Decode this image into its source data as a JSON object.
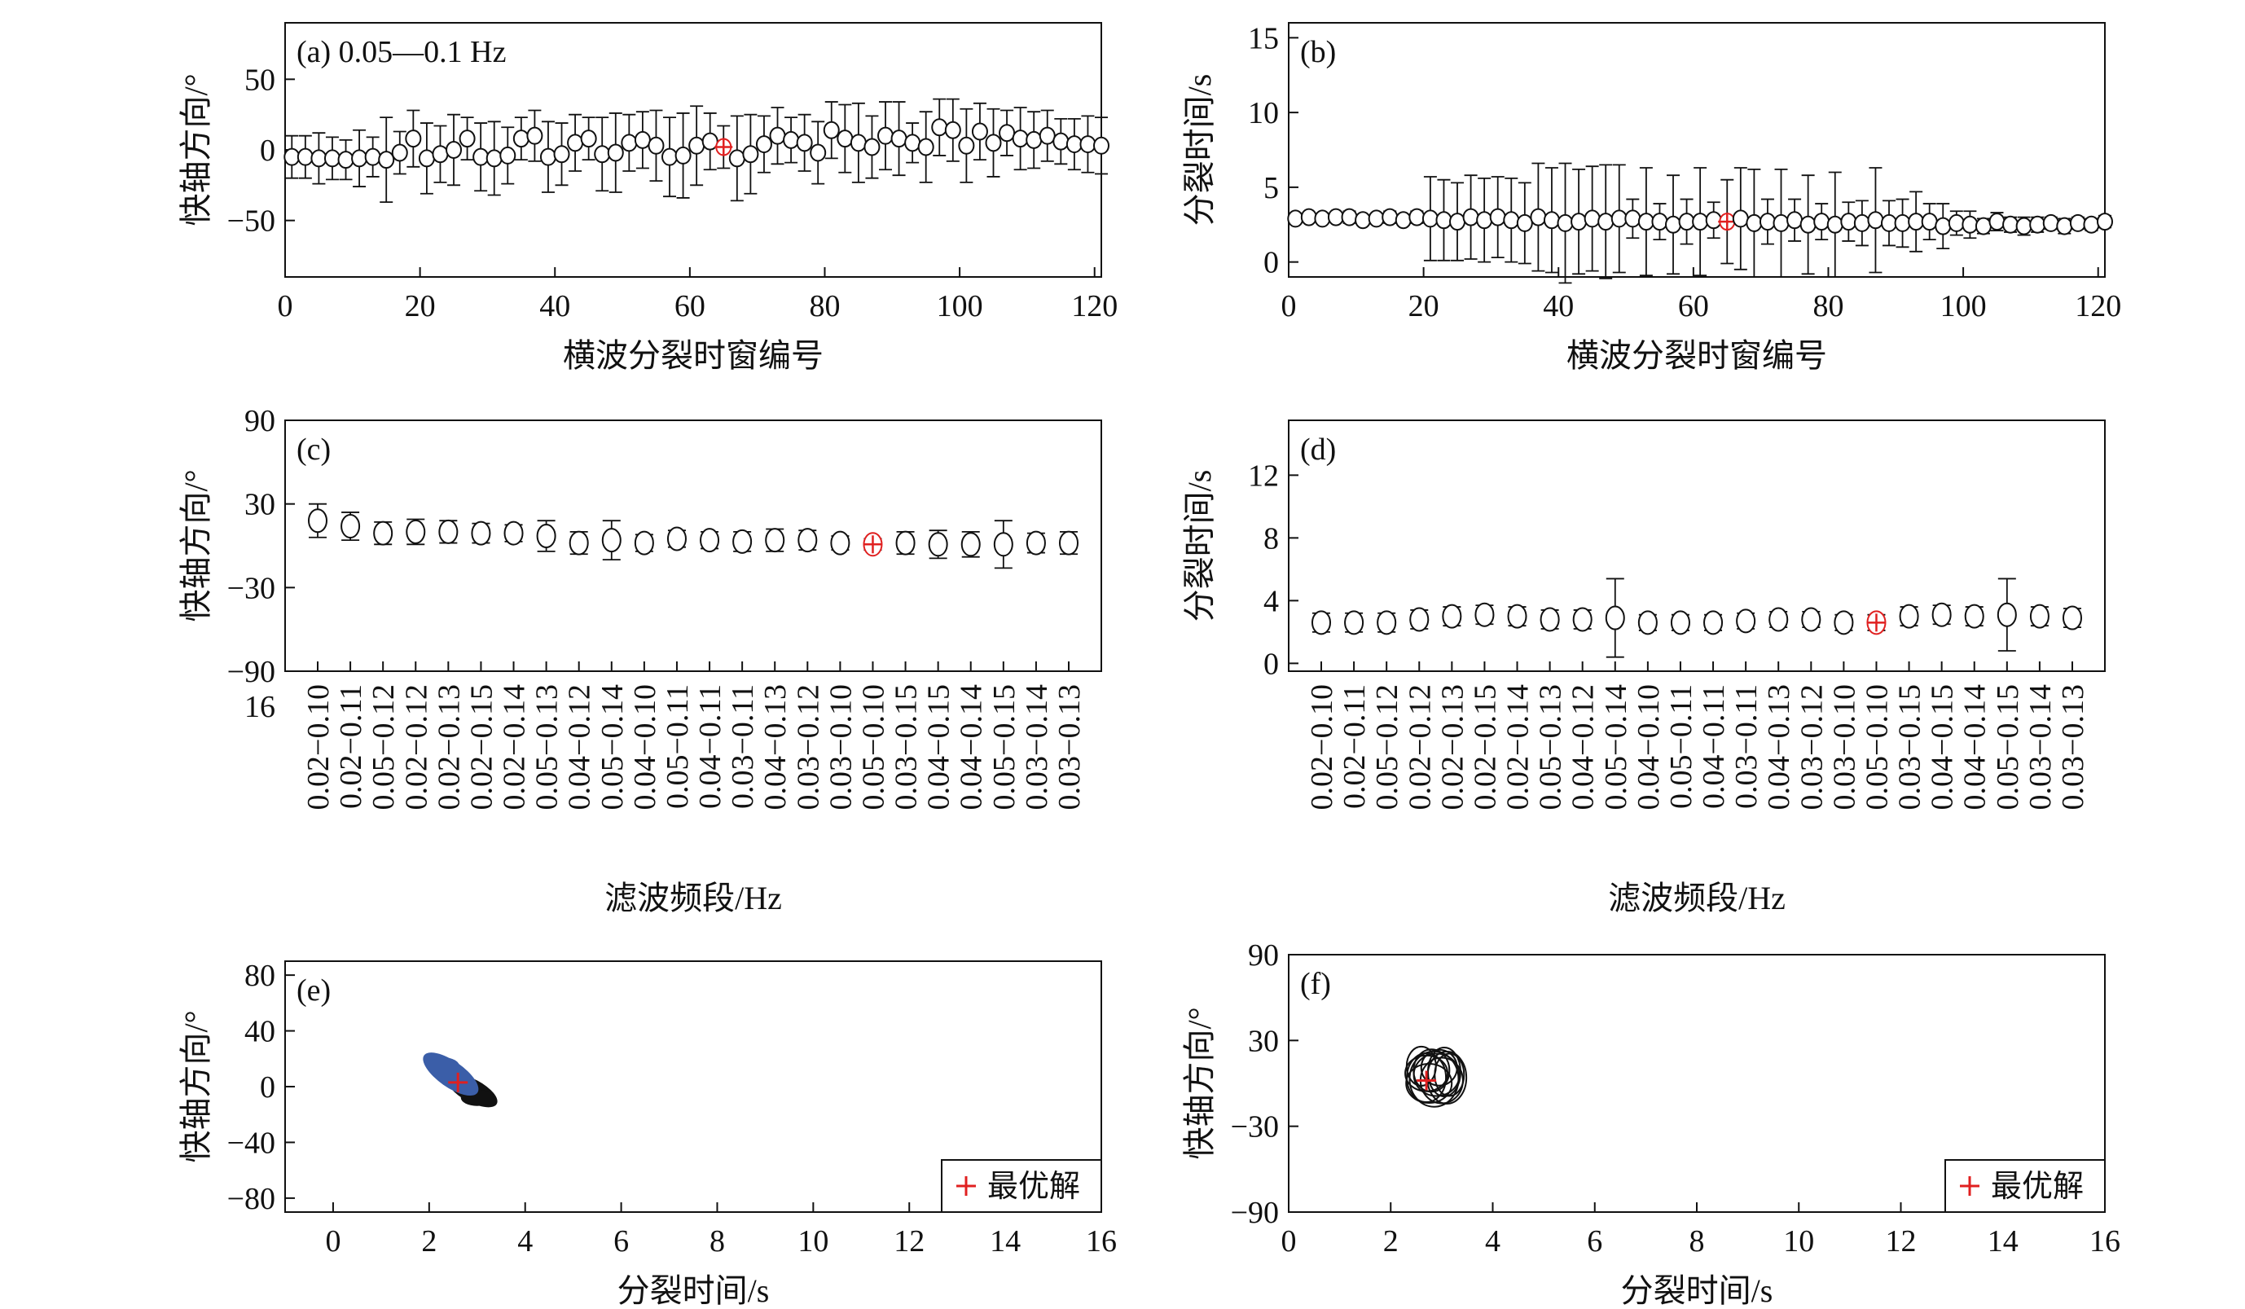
{
  "chart_data": [
    {
      "id": "a",
      "type": "scatter",
      "panel_label": "(a) 0.05—0.1 Hz",
      "xlabel": "横波分裂时窗编号",
      "ylabel": "快轴方向/°",
      "xlim": [
        0,
        121
      ],
      "ylim": [
        -90,
        90
      ],
      "xticks": [
        0,
        20,
        40,
        60,
        80,
        100,
        120
      ],
      "yticks": [
        50,
        0,
        -50
      ],
      "ytick_labels": [
        "50",
        "0",
        "−50"
      ],
      "best_index": 65,
      "series": [
        {
          "x": [
            1,
            3,
            5,
            7,
            9,
            11,
            13,
            15,
            17,
            19,
            21,
            23,
            25,
            27,
            29,
            31,
            33,
            35,
            37,
            39,
            41,
            43,
            45,
            47,
            49,
            51,
            53,
            55,
            57,
            59,
            61,
            63,
            65,
            67,
            69,
            71,
            73,
            75,
            77,
            79,
            81,
            83,
            85,
            87,
            89,
            91,
            93,
            95,
            97,
            99,
            101,
            103,
            105,
            107,
            109,
            111,
            113,
            115,
            117,
            119,
            121
          ],
          "y": [
            -5,
            -5,
            -6,
            -6,
            -7,
            -6,
            -5,
            -7,
            -2,
            8,
            -6,
            -3,
            0,
            8,
            -5,
            -6,
            -4,
            8,
            10,
            -5,
            -3,
            5,
            8,
            -3,
            -2,
            5,
            7,
            3,
            -5,
            -4,
            3,
            6,
            2,
            -6,
            -3,
            4,
            10,
            7,
            5,
            -2,
            14,
            8,
            5,
            2,
            10,
            8,
            5,
            2,
            16,
            14,
            3,
            13,
            5,
            12,
            8,
            7,
            10,
            6,
            4,
            4,
            3
          ],
          "err": [
            15,
            15,
            18,
            15,
            14,
            20,
            14,
            30,
            15,
            20,
            25,
            20,
            25,
            15,
            24,
            26,
            20,
            15,
            18,
            25,
            22,
            20,
            15,
            26,
            28,
            20,
            20,
            25,
            28,
            30,
            28,
            20,
            15,
            30,
            28,
            20,
            20,
            16,
            20,
            22,
            20,
            24,
            28,
            22,
            24,
            26,
            14,
            25,
            20,
            22,
            26,
            20,
            24,
            16,
            22,
            20,
            18,
            16,
            18,
            20,
            20
          ]
        }
      ]
    },
    {
      "id": "b",
      "type": "scatter",
      "panel_label": "(b)",
      "xlabel": "横波分裂时窗编号",
      "ylabel": "分裂时间/s",
      "xlim": [
        0,
        121
      ],
      "ylim": [
        -1,
        16
      ],
      "xticks": [
        0,
        20,
        40,
        60,
        80,
        100,
        120
      ],
      "yticks": [
        0,
        5,
        10,
        15
      ],
      "best_index": 65,
      "series": [
        {
          "x": [
            1,
            3,
            5,
            7,
            9,
            11,
            13,
            15,
            17,
            19,
            21,
            23,
            25,
            27,
            29,
            31,
            33,
            35,
            37,
            39,
            41,
            43,
            45,
            47,
            49,
            51,
            53,
            55,
            57,
            59,
            61,
            63,
            65,
            67,
            69,
            71,
            73,
            75,
            77,
            79,
            81,
            83,
            85,
            87,
            89,
            91,
            93,
            95,
            97,
            99,
            101,
            103,
            105,
            107,
            109,
            111,
            113,
            115,
            117,
            119,
            121
          ],
          "y": [
            2.9,
            3.0,
            2.9,
            3.0,
            3.0,
            2.8,
            2.9,
            3.0,
            2.8,
            3.0,
            2.9,
            2.8,
            2.7,
            3.0,
            2.8,
            3.0,
            2.8,
            2.6,
            3.0,
            2.8,
            2.6,
            2.7,
            2.9,
            2.7,
            2.9,
            2.9,
            2.7,
            2.7,
            2.5,
            2.7,
            2.7,
            2.8,
            2.7,
            2.9,
            2.6,
            2.7,
            2.6,
            2.8,
            2.5,
            2.7,
            2.5,
            2.7,
            2.6,
            2.8,
            2.6,
            2.6,
            2.7,
            2.7,
            2.4,
            2.6,
            2.5,
            2.4,
            2.7,
            2.5,
            2.4,
            2.5,
            2.6,
            2.4,
            2.6,
            2.5,
            2.7
          ],
          "err": [
            0.3,
            0.3,
            0.3,
            0.3,
            0.4,
            0.3,
            0.3,
            0.4,
            0.3,
            0.4,
            2.8,
            2.7,
            2.6,
            2.8,
            2.8,
            2.7,
            2.8,
            2.7,
            3.6,
            3.5,
            4.0,
            3.5,
            3.5,
            3.8,
            3.6,
            1.3,
            3.6,
            1.2,
            3.3,
            1.5,
            3.6,
            1.2,
            2.8,
            3.4,
            3.6,
            1.5,
            3.6,
            1.4,
            3.3,
            1.2,
            3.5,
            1.3,
            1.5,
            3.5,
            1.5,
            1.6,
            2.0,
            1.2,
            1.5,
            0.8,
            0.9,
            0.5,
            0.6,
            0.5,
            0.6,
            0.5,
            0.4,
            0.5,
            0.4,
            0.4,
            0.4
          ]
        }
      ]
    },
    {
      "id": "c",
      "type": "scatter",
      "panel_label": "(c)",
      "xlabel": "滤波频段/Hz",
      "ylabel": "快轴方向/°",
      "ylim": [
        -90,
        90
      ],
      "yticks": [
        90,
        30,
        -30,
        -90
      ],
      "ytick_labels": [
        "90",
        "30",
        "−30",
        "−90"
      ],
      "extra_tick_label": "16",
      "categories": [
        "0.02−0.10",
        "0.02−0.11",
        "0.05−0.12",
        "0.02−0.12",
        "0.02−0.13",
        "0.02−0.15",
        "0.02−0.14",
        "0.05−0.13",
        "0.04−0.12",
        "0.05−0.14",
        "0.04−0.10",
        "0.05−0.11",
        "0.04−0.11",
        "0.03−0.11",
        "0.04−0.13",
        "0.03−0.12",
        "0.03−0.10",
        "0.05−0.10",
        "0.03−0.15",
        "0.04−0.15",
        "0.04−0.14",
        "0.05−0.15",
        "0.03−0.14",
        "0.03−0.13"
      ],
      "best_index": 17,
      "series": [
        {
          "values": [
            18,
            14,
            9,
            10,
            10,
            9,
            9,
            7,
            2,
            4,
            2,
            5,
            4,
            3,
            4,
            4,
            2,
            1,
            2,
            1,
            1,
            1,
            2,
            2
          ],
          "err": [
            12,
            10,
            8,
            9,
            8,
            7,
            6,
            11,
            8,
            14,
            6,
            6,
            6,
            7,
            8,
            7,
            5,
            4,
            8,
            10,
            9,
            17,
            7,
            8
          ]
        }
      ]
    },
    {
      "id": "d",
      "type": "scatter",
      "panel_label": "(d)",
      "xlabel": "滤波频段/Hz",
      "ylabel": "分裂时间/s",
      "ylim": [
        -0.5,
        15.5
      ],
      "yticks": [
        0,
        4,
        8,
        12
      ],
      "categories": [
        "0.02−0.10",
        "0.02−0.11",
        "0.05−0.12",
        "0.02−0.12",
        "0.02−0.13",
        "0.02−0.15",
        "0.02−0.14",
        "0.05−0.13",
        "0.04−0.12",
        "0.05−0.14",
        "0.04−0.10",
        "0.05−0.11",
        "0.04−0.11",
        "0.03−0.11",
        "0.04−0.13",
        "0.03−0.12",
        "0.03−0.10",
        "0.05−0.10",
        "0.03−0.15",
        "0.04−0.15",
        "0.04−0.14",
        "0.05−0.15",
        "0.03−0.14",
        "0.03−0.13"
      ],
      "best_index": 17,
      "series": [
        {
          "values": [
            2.6,
            2.6,
            2.6,
            2.8,
            3.0,
            3.1,
            3.0,
            2.8,
            2.8,
            2.9,
            2.6,
            2.6,
            2.6,
            2.7,
            2.8,
            2.8,
            2.6,
            2.6,
            3.0,
            3.1,
            3.0,
            3.1,
            3.0,
            2.9
          ],
          "err": [
            0.6,
            0.6,
            0.6,
            0.6,
            0.6,
            0.6,
            0.6,
            0.6,
            0.6,
            2.5,
            0.5,
            0.5,
            0.5,
            0.5,
            0.5,
            0.5,
            0.5,
            0.5,
            0.6,
            0.6,
            0.6,
            2.3,
            0.6,
            0.6
          ]
        }
      ]
    },
    {
      "id": "e",
      "type": "scatter",
      "panel_label": "(e)",
      "xlabel": "分裂时间/s",
      "ylabel": "快轴方向/°",
      "xlim": [
        -1,
        16
      ],
      "ylim": [
        -90,
        90
      ],
      "xticks": [
        0,
        2,
        4,
        6,
        8,
        10,
        12,
        14,
        16
      ],
      "yticks": [
        80,
        40,
        0,
        -40,
        -80
      ],
      "ytick_labels": [
        "80",
        "40",
        "0",
        "−40",
        "−80"
      ],
      "legend": "最优解",
      "legend_position": "bottom-right",
      "colors": {
        "blue_cluster": "#3b5ea8",
        "black_cluster": "#111111",
        "best": "#e02020"
      },
      "best": {
        "x": 2.6,
        "y": 3
      }
    },
    {
      "id": "f",
      "type": "scatter",
      "panel_label": "(f)",
      "xlabel": "分裂时间/s",
      "ylabel": "快轴方向/°",
      "xlim": [
        0,
        16
      ],
      "ylim": [
        -90,
        90
      ],
      "xticks": [
        0,
        2,
        4,
        6,
        8,
        10,
        12,
        14,
        16
      ],
      "yticks": [
        90,
        30,
        -30,
        -90
      ],
      "ytick_labels": [
        "90",
        "30",
        "−30",
        "−90"
      ],
      "legend": "最优解",
      "legend_position": "bottom-right",
      "colors": {
        "contour": "#111111",
        "best": "#e02020"
      },
      "best": {
        "x": 2.7,
        "y": 2
      }
    }
  ]
}
